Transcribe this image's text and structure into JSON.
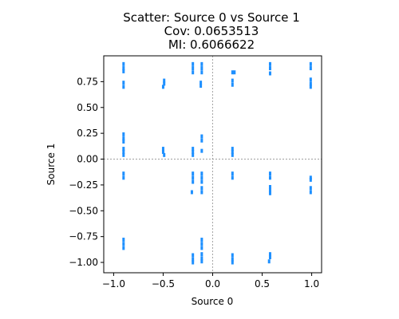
{
  "chart_data": {
    "type": "scatter",
    "title_lines": [
      "Scatter: Source 0 vs Source 1",
      "Cov: 0.0653513",
      "MI: 0.6066622"
    ],
    "xlabel": "Source 0",
    "ylabel": "Source 1",
    "xlim": [
      -1.1,
      1.1
    ],
    "ylim": [
      -1.1,
      1.0
    ],
    "xticks": [
      -1.0,
      -0.5,
      0.0,
      0.5,
      1.0
    ],
    "xtick_labels": [
      "−1.0",
      "−0.5",
      "0.0",
      "0.5",
      "1.0"
    ],
    "yticks": [
      -1.0,
      -0.75,
      -0.5,
      -0.25,
      0.0,
      0.25,
      0.5,
      0.75
    ],
    "ytick_labels": [
      "−1.00",
      "−0.75",
      "−0.50",
      "−0.25",
      "0.00",
      "0.25",
      "0.50",
      "0.75"
    ],
    "grid": false,
    "reference_lines": [
      {
        "axis": "x",
        "value": 0.0
      },
      {
        "axis": "y",
        "value": 0.0
      }
    ],
    "point_color": "#1e90ff",
    "ref_line_color": "#808080",
    "points": [
      {
        "x": -0.9,
        "y": 0.92
      },
      {
        "x": -0.9,
        "y": 0.88
      },
      {
        "x": -0.9,
        "y": 0.85
      },
      {
        "x": -0.9,
        "y": 0.74
      },
      {
        "x": -0.9,
        "y": 0.7
      },
      {
        "x": -0.9,
        "y": 0.24
      },
      {
        "x": -0.9,
        "y": 0.2
      },
      {
        "x": -0.9,
        "y": 0.17
      },
      {
        "x": -0.9,
        "y": 0.1
      },
      {
        "x": -0.9,
        "y": 0.07
      },
      {
        "x": -0.9,
        "y": 0.04
      },
      {
        "x": -0.9,
        "y": -0.14
      },
      {
        "x": -0.9,
        "y": -0.18
      },
      {
        "x": -0.9,
        "y": -0.78
      },
      {
        "x": -0.9,
        "y": -0.82
      },
      {
        "x": -0.9,
        "y": -0.86
      },
      {
        "x": -0.49,
        "y": 0.76
      },
      {
        "x": -0.49,
        "y": 0.73
      },
      {
        "x": -0.5,
        "y": 0.7
      },
      {
        "x": -0.5,
        "y": 0.1
      },
      {
        "x": -0.5,
        "y": 0.07
      },
      {
        "x": -0.49,
        "y": 0.04
      },
      {
        "x": -0.2,
        "y": 0.92
      },
      {
        "x": -0.2,
        "y": 0.88
      },
      {
        "x": -0.2,
        "y": 0.84
      },
      {
        "x": -0.2,
        "y": 0.1
      },
      {
        "x": -0.2,
        "y": 0.07
      },
      {
        "x": -0.2,
        "y": 0.04
      },
      {
        "x": -0.2,
        "y": -0.14
      },
      {
        "x": -0.2,
        "y": -0.18
      },
      {
        "x": -0.2,
        "y": -0.22
      },
      {
        "x": -0.21,
        "y": -0.32
      },
      {
        "x": -0.2,
        "y": -0.93
      },
      {
        "x": -0.2,
        "y": -0.97
      },
      {
        "x": -0.2,
        "y": -1.0
      },
      {
        "x": -0.11,
        "y": 0.92
      },
      {
        "x": -0.11,
        "y": 0.88
      },
      {
        "x": -0.11,
        "y": 0.84
      },
      {
        "x": -0.12,
        "y": 0.74
      },
      {
        "x": -0.12,
        "y": 0.71
      },
      {
        "x": -0.11,
        "y": 0.22
      },
      {
        "x": -0.11,
        "y": 0.18
      },
      {
        "x": -0.11,
        "y": 0.08
      },
      {
        "x": -0.11,
        "y": -0.14
      },
      {
        "x": -0.11,
        "y": -0.18
      },
      {
        "x": -0.11,
        "y": -0.22
      },
      {
        "x": -0.11,
        "y": -0.28
      },
      {
        "x": -0.11,
        "y": -0.32
      },
      {
        "x": -0.11,
        "y": -0.78
      },
      {
        "x": -0.11,
        "y": -0.82
      },
      {
        "x": -0.11,
        "y": -0.86
      },
      {
        "x": -0.11,
        "y": -0.92
      },
      {
        "x": -0.11,
        "y": -0.96
      },
      {
        "x": -0.11,
        "y": -0.99
      },
      {
        "x": 0.2,
        "y": 0.84
      },
      {
        "x": 0.22,
        "y": 0.84
      },
      {
        "x": 0.2,
        "y": 0.76
      },
      {
        "x": 0.2,
        "y": 0.72
      },
      {
        "x": 0.2,
        "y": 0.1
      },
      {
        "x": 0.2,
        "y": 0.07
      },
      {
        "x": 0.2,
        "y": 0.04
      },
      {
        "x": 0.2,
        "y": -0.14
      },
      {
        "x": 0.2,
        "y": -0.18
      },
      {
        "x": 0.2,
        "y": -0.93
      },
      {
        "x": 0.2,
        "y": -0.97
      },
      {
        "x": 0.2,
        "y": -1.0
      },
      {
        "x": 0.58,
        "y": 0.92
      },
      {
        "x": 0.58,
        "y": 0.88
      },
      {
        "x": 0.58,
        "y": 0.83
      },
      {
        "x": 0.58,
        "y": -0.14
      },
      {
        "x": 0.58,
        "y": -0.18
      },
      {
        "x": 0.58,
        "y": -0.27
      },
      {
        "x": 0.58,
        "y": -0.3
      },
      {
        "x": 0.58,
        "y": -0.33
      },
      {
        "x": 0.58,
        "y": -0.92
      },
      {
        "x": 0.58,
        "y": -0.95
      },
      {
        "x": 0.57,
        "y": -0.99
      },
      {
        "x": 0.99,
        "y": 0.92
      },
      {
        "x": 0.99,
        "y": 0.88
      },
      {
        "x": 0.99,
        "y": 0.77
      },
      {
        "x": 0.99,
        "y": 0.73
      },
      {
        "x": 0.99,
        "y": 0.7
      },
      {
        "x": 0.99,
        "y": -0.18
      },
      {
        "x": 0.99,
        "y": -0.2
      },
      {
        "x": 0.99,
        "y": -0.28
      },
      {
        "x": 0.99,
        "y": -0.32
      }
    ]
  }
}
